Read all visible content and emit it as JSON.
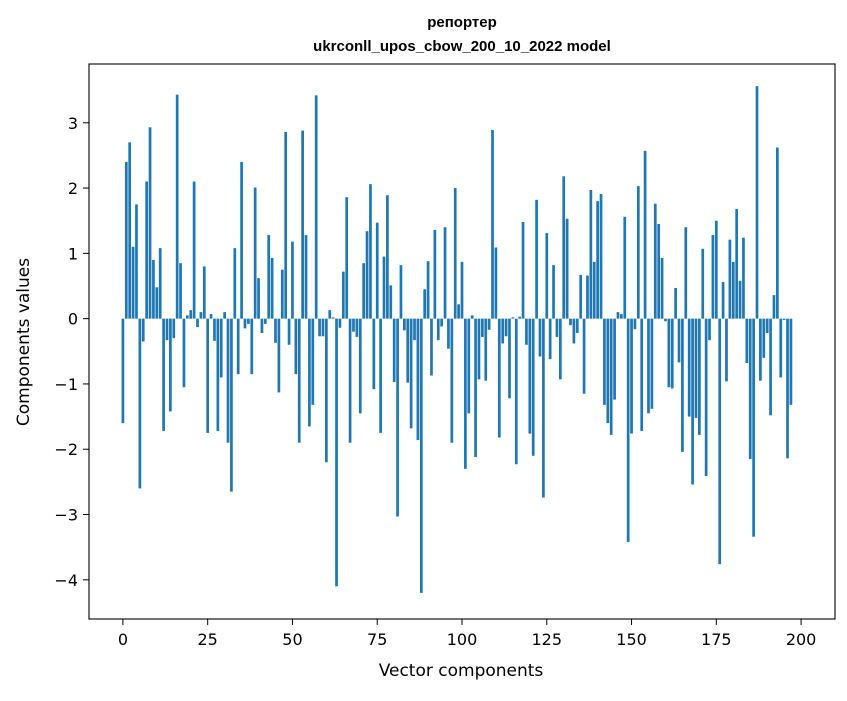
{
  "chart_data": {
    "type": "bar",
    "title": "репортер",
    "subtitle": "ukrconll_upos_cbow_200_10_2022 model",
    "xlabel": "Vector components",
    "ylabel": "Components values",
    "xlim": [
      -10,
      210
    ],
    "ylim": [
      -4.6,
      3.9
    ],
    "xticks": [
      0,
      25,
      50,
      75,
      100,
      125,
      150,
      175,
      200
    ],
    "yticks": [
      -4,
      -3,
      -2,
      -1,
      0,
      1,
      2,
      3
    ],
    "ytick_labels": [
      "−4",
      "−3",
      "−2",
      "−1",
      "0",
      "1",
      "2",
      "3"
    ],
    "bar_color": "#1f77b4",
    "grid": false,
    "legend": "none",
    "values": [
      -1.6,
      2.4,
      2.7,
      1.1,
      1.75,
      -2.6,
      -0.35,
      2.1,
      2.93,
      0.9,
      0.48,
      1.08,
      -1.72,
      -0.33,
      -1.42,
      -0.3,
      3.43,
      0.85,
      -1.05,
      0.05,
      0.13,
      2.1,
      -0.13,
      0.1,
      0.8,
      -1.75,
      0.07,
      -0.34,
      -1.72,
      -0.9,
      0.1,
      -1.9,
      -2.65,
      1.08,
      -0.85,
      2.4,
      -0.15,
      -0.08,
      -0.85,
      2.01,
      0.62,
      -0.22,
      -0.08,
      1.28,
      0.93,
      -0.37,
      -1.13,
      0.75,
      2.86,
      -0.4,
      1.18,
      -0.85,
      -1.9,
      2.88,
      1.28,
      -1.65,
      -1.32,
      3.42,
      -0.27,
      -0.27,
      -2.2,
      0.13,
      0.02,
      -4.1,
      -0.14,
      0.72,
      1.86,
      -1.9,
      -0.2,
      -0.28,
      -1.45,
      0.85,
      1.34,
      2.06,
      -1.08,
      1.47,
      -1.75,
      0.95,
      1.89,
      0.51,
      -0.97,
      -3.03,
      0.82,
      -0.18,
      -0.98,
      -1.68,
      -0.33,
      -1.86,
      -4.2,
      0.45,
      0.88,
      -0.87,
      1.36,
      -0.33,
      -0.12,
      1.4,
      -0.46,
      -1.9,
      2.0,
      0.22,
      0.87,
      -2.3,
      -1.45,
      0.05,
      -2.12,
      -0.93,
      -0.28,
      -0.95,
      -0.17,
      2.89,
      1.09,
      -1.82,
      -0.38,
      -0.27,
      -1.22,
      0.02,
      -2.23,
      0.03,
      1.48,
      -0.4,
      -1.76,
      -2.1,
      1.82,
      -0.58,
      -2.74,
      1.31,
      -0.62,
      0.82,
      -0.28,
      -0.93,
      2.18,
      1.53,
      -0.1,
      -0.38,
      -0.22,
      0.67,
      -1.15,
      0.66,
      1.97,
      0.87,
      1.8,
      1.91,
      -1.32,
      -1.6,
      -1.78,
      -1.24,
      0.1,
      0.07,
      1.56,
      -3.42,
      -1.76,
      -0.16,
      2.03,
      -1.72,
      2.57,
      -1.45,
      -1.38,
      1.76,
      1.45,
      0.93,
      -0.04,
      -1.05,
      -1.07,
      0.47,
      -0.67,
      -2.04,
      1.4,
      -1.5,
      -2.54,
      -1.52,
      -1.78,
      1.07,
      -2.41,
      -0.33,
      1.28,
      1.5,
      -3.76,
      0.56,
      -0.96,
      1.21,
      0.87,
      1.68,
      0.58,
      1.24,
      -0.68,
      -2.15,
      -3.34,
      3.56,
      -0.95,
      -0.6,
      -0.22,
      -1.48,
      0.36,
      2.62,
      -0.9,
      -0.02,
      -2.14,
      -1.32
    ]
  }
}
